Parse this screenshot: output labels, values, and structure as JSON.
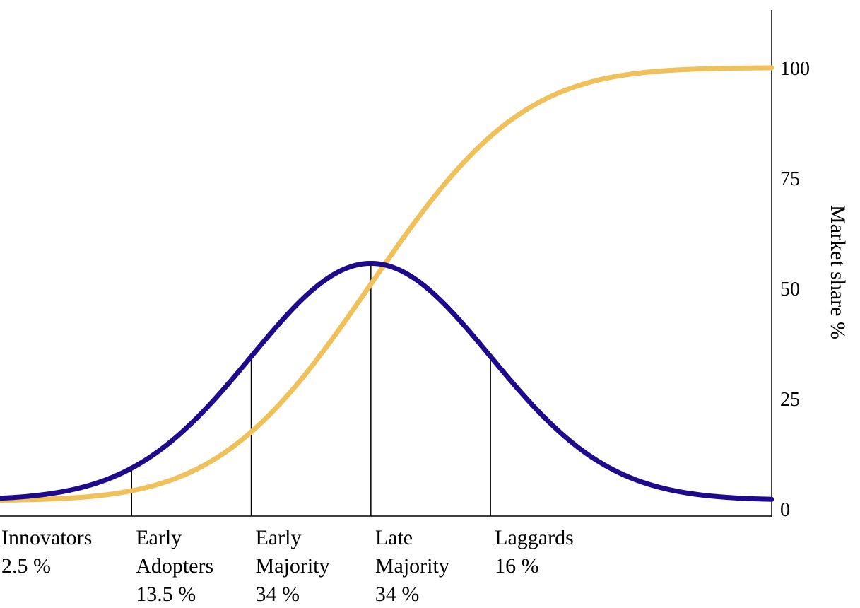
{
  "chart_data": {
    "type": "line",
    "ylabel": "Market share %",
    "ylim": [
      0,
      115
    ],
    "y_ticks": [
      "0",
      "25",
      "50",
      "75",
      "100"
    ],
    "y_tick_values": [
      0,
      25,
      50,
      75,
      100
    ],
    "y_axis_position": "right",
    "grid": false,
    "legend": "none",
    "x_range": [
      -3.1,
      3.35
    ],
    "segments": [
      {
        "name": "Innovators",
        "share": "2.5 %",
        "lines": [
          "Innovators",
          "2.5 %"
        ],
        "boundary": -3.1
      },
      {
        "name": "Early Adopters",
        "share": "13.5 %",
        "lines": [
          "Early",
          "Adopters",
          "13.5 %"
        ],
        "boundary": -2
      },
      {
        "name": "Early Majority",
        "share": "34 %",
        "lines": [
          "Early",
          "Majority",
          "34 %"
        ],
        "boundary": -1
      },
      {
        "name": "Late Majority",
        "share": "34 %",
        "lines": [
          "Late",
          "Majority",
          "34 %"
        ],
        "boundary": 0
      },
      {
        "name": "Laggards",
        "share": "16 %",
        "lines": [
          "Laggards",
          "16 %"
        ],
        "boundary": 1
      }
    ],
    "series": [
      {
        "kind": "adoption-bell",
        "color": "#1f0a8c",
        "peak": 55.7,
        "baseline": 2.0
      },
      {
        "kind": "cumulative-s-curve",
        "color": "#f0c05a",
        "max": 100,
        "baseline": 2.0
      }
    ],
    "colors": {
      "bell": "#1f0a8c",
      "scurve": "#f0c05a",
      "axis": "#000000"
    }
  }
}
